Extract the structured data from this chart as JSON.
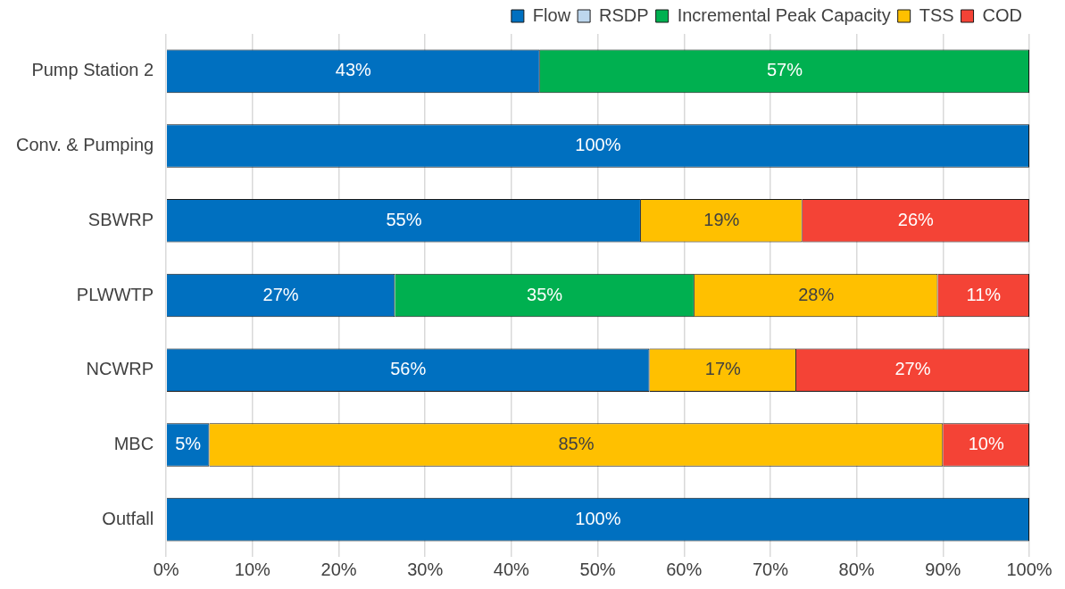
{
  "chart_data": {
    "type": "bar",
    "orientation": "horizontal",
    "stacked": true,
    "categories": [
      "Pump Station 2",
      "Conv. & Pumping",
      "SBWRP",
      "PLWWTP",
      "NCWRP",
      "MBC",
      "Outfall"
    ],
    "series": [
      {
        "name": "Flow",
        "color": "#0070c0",
        "values": [
          43.3,
          100,
          55,
          26.5,
          56,
          5,
          100
        ],
        "value_labels": [
          "43%",
          "100%",
          "55%",
          "27%",
          "56%",
          "5%",
          "100%"
        ]
      },
      {
        "name": "RSDP",
        "color": "#bdd7ee",
        "values": [
          null,
          null,
          null,
          null,
          null,
          null,
          null
        ]
      },
      {
        "name": "Incremental Peak Capacity",
        "color": "#00b050",
        "values": [
          56.7,
          null,
          null,
          34.7,
          null,
          null,
          null
        ],
        "value_labels": [
          "57%",
          null,
          null,
          "35%",
          null,
          null,
          null
        ]
      },
      {
        "name": "TSS",
        "color": "#ffc000",
        "values": [
          null,
          null,
          18.7,
          28.2,
          17,
          85,
          null
        ],
        "value_labels": [
          null,
          null,
          "19%",
          "28%",
          "17%",
          "85%",
          null
        ]
      },
      {
        "name": "COD",
        "color": "#f44336",
        "values": [
          null,
          null,
          26.3,
          10.6,
          27,
          10,
          null
        ],
        "value_labels": [
          null,
          null,
          "26%",
          "11%",
          "27%",
          "10%",
          null
        ]
      }
    ],
    "xlim": [
      0,
      100
    ],
    "xticks": [
      {
        "value": 0,
        "label": "0%"
      },
      {
        "value": 10,
        "label": "10%"
      },
      {
        "value": 20,
        "label": "20%"
      },
      {
        "value": 30,
        "label": "30%"
      },
      {
        "value": 40,
        "label": "40%"
      },
      {
        "value": 50,
        "label": "50%"
      },
      {
        "value": 60,
        "label": "60%"
      },
      {
        "value": 70,
        "label": "70%"
      },
      {
        "value": 80,
        "label": "80%"
      },
      {
        "value": 90,
        "label": "90%"
      },
      {
        "value": 100,
        "label": "100%"
      }
    ],
    "grid": "x",
    "legend": "top right"
  }
}
